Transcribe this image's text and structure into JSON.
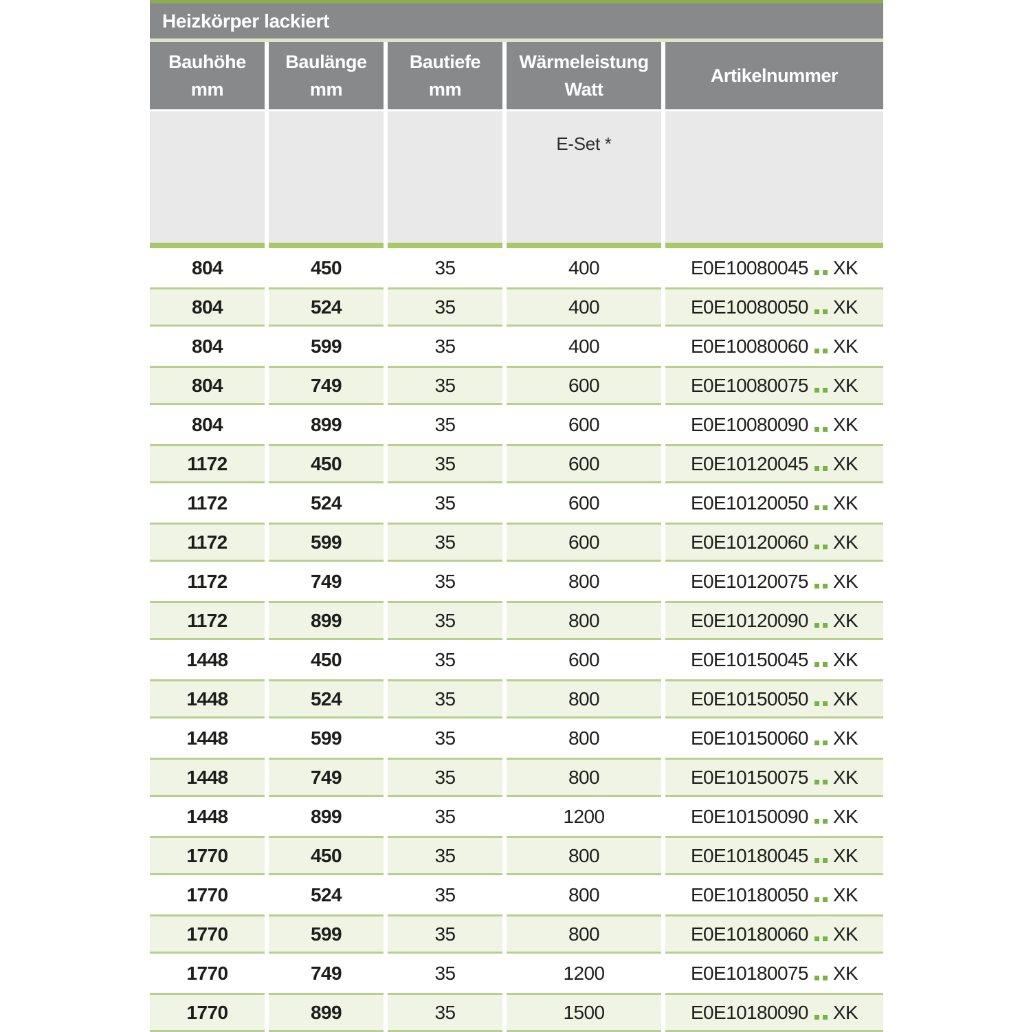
{
  "table": {
    "title": "Heizkörper lackiert",
    "columns": [
      {
        "line1": "Bauhöhe",
        "line2": "mm"
      },
      {
        "line1": "Baulänge",
        "line2": "mm"
      },
      {
        "line1": "Bautiefe",
        "line2": "mm"
      },
      {
        "line1": "Wärmeleistung",
        "line2": "Watt"
      },
      {
        "line1": "Artikelnummer",
        "line2": ""
      }
    ],
    "subheader": {
      "eset_label": "E-Set *"
    },
    "rows": [
      {
        "bauhoehe": "804",
        "baulaenge": "450",
        "bautiefe": "35",
        "watt": "400",
        "artikel": "E0E10080045",
        "artikel_suffix": "XK"
      },
      {
        "bauhoehe": "804",
        "baulaenge": "524",
        "bautiefe": "35",
        "watt": "400",
        "artikel": "E0E10080050",
        "artikel_suffix": "XK"
      },
      {
        "bauhoehe": "804",
        "baulaenge": "599",
        "bautiefe": "35",
        "watt": "400",
        "artikel": "E0E10080060",
        "artikel_suffix": "XK"
      },
      {
        "bauhoehe": "804",
        "baulaenge": "749",
        "bautiefe": "35",
        "watt": "600",
        "artikel": "E0E10080075",
        "artikel_suffix": "XK"
      },
      {
        "bauhoehe": "804",
        "baulaenge": "899",
        "bautiefe": "35",
        "watt": "600",
        "artikel": "E0E10080090",
        "artikel_suffix": "XK"
      },
      {
        "bauhoehe": "1172",
        "baulaenge": "450",
        "bautiefe": "35",
        "watt": "600",
        "artikel": "E0E10120045",
        "artikel_suffix": "XK"
      },
      {
        "bauhoehe": "1172",
        "baulaenge": "524",
        "bautiefe": "35",
        "watt": "600",
        "artikel": "E0E10120050",
        "artikel_suffix": "XK"
      },
      {
        "bauhoehe": "1172",
        "baulaenge": "599",
        "bautiefe": "35",
        "watt": "600",
        "artikel": "E0E10120060",
        "artikel_suffix": "XK"
      },
      {
        "bauhoehe": "1172",
        "baulaenge": "749",
        "bautiefe": "35",
        "watt": "800",
        "artikel": "E0E10120075",
        "artikel_suffix": "XK"
      },
      {
        "bauhoehe": "1172",
        "baulaenge": "899",
        "bautiefe": "35",
        "watt": "800",
        "artikel": "E0E10120090",
        "artikel_suffix": "XK"
      },
      {
        "bauhoehe": "1448",
        "baulaenge": "450",
        "bautiefe": "35",
        "watt": "600",
        "artikel": "E0E10150045",
        "artikel_suffix": "XK"
      },
      {
        "bauhoehe": "1448",
        "baulaenge": "524",
        "bautiefe": "35",
        "watt": "800",
        "artikel": "E0E10150050",
        "artikel_suffix": "XK"
      },
      {
        "bauhoehe": "1448",
        "baulaenge": "599",
        "bautiefe": "35",
        "watt": "800",
        "artikel": "E0E10150060",
        "artikel_suffix": "XK"
      },
      {
        "bauhoehe": "1448",
        "baulaenge": "749",
        "bautiefe": "35",
        "watt": "800",
        "artikel": "E0E10150075",
        "artikel_suffix": "XK"
      },
      {
        "bauhoehe": "1448",
        "baulaenge": "899",
        "bautiefe": "35",
        "watt": "1200",
        "artikel": "E0E10150090",
        "artikel_suffix": "XK"
      },
      {
        "bauhoehe": "1770",
        "baulaenge": "450",
        "bautiefe": "35",
        "watt": "800",
        "artikel": "E0E10180045",
        "artikel_suffix": "XK"
      },
      {
        "bauhoehe": "1770",
        "baulaenge": "524",
        "bautiefe": "35",
        "watt": "800",
        "artikel": "E0E10180050",
        "artikel_suffix": "XK"
      },
      {
        "bauhoehe": "1770",
        "baulaenge": "599",
        "bautiefe": "35",
        "watt": "800",
        "artikel": "E0E10180060",
        "artikel_suffix": "XK"
      },
      {
        "bauhoehe": "1770",
        "baulaenge": "749",
        "bautiefe": "35",
        "watt": "1200",
        "artikel": "E0E10180075",
        "artikel_suffix": "XK"
      },
      {
        "bauhoehe": "1770",
        "baulaenge": "899",
        "bautiefe": "35",
        "watt": "1500",
        "artikel": "E0E10180090",
        "artikel_suffix": "XK"
      }
    ]
  },
  "colors": {
    "header_gray": "#88898b",
    "top_accent_green": "#8dab51",
    "divider_green": "#abc76c",
    "row_green_bg": "#f0f4e4",
    "row_green_border": "#b8cf8e",
    "artikel_dot_green": "#79b244",
    "subheader_gray": "#e9e9e9",
    "text_dark": "#1d1d1b"
  }
}
